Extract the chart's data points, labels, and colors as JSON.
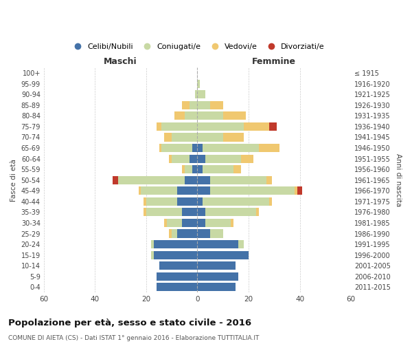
{
  "age_groups": [
    "0-4",
    "5-9",
    "10-14",
    "15-19",
    "20-24",
    "25-29",
    "30-34",
    "35-39",
    "40-44",
    "45-49",
    "50-54",
    "55-59",
    "60-64",
    "65-69",
    "70-74",
    "75-79",
    "80-84",
    "85-89",
    "90-94",
    "95-99",
    "100+"
  ],
  "birth_years": [
    "2011-2015",
    "2006-2010",
    "2001-2005",
    "1996-2000",
    "1991-1995",
    "1986-1990",
    "1981-1985",
    "1976-1980",
    "1971-1975",
    "1966-1970",
    "1961-1965",
    "1956-1960",
    "1951-1955",
    "1946-1950",
    "1941-1945",
    "1936-1940",
    "1931-1935",
    "1926-1930",
    "1921-1925",
    "1916-1920",
    "≤ 1915"
  ],
  "maschi": {
    "celibi": [
      16,
      16,
      15,
      17,
      17,
      8,
      6,
      6,
      8,
      8,
      5,
      2,
      3,
      2,
      0,
      0,
      0,
      0,
      0,
      0,
      0
    ],
    "coniugati": [
      0,
      0,
      0,
      1,
      1,
      2,
      6,
      14,
      12,
      14,
      26,
      3,
      7,
      12,
      10,
      14,
      5,
      3,
      1,
      0,
      0
    ],
    "vedovi": [
      0,
      0,
      0,
      0,
      0,
      1,
      1,
      1,
      1,
      1,
      0,
      1,
      1,
      1,
      3,
      2,
      4,
      3,
      0,
      0,
      0
    ],
    "divorziati": [
      0,
      0,
      0,
      0,
      0,
      0,
      0,
      0,
      0,
      0,
      2,
      0,
      0,
      0,
      0,
      0,
      0,
      0,
      0,
      0,
      0
    ]
  },
  "femmine": {
    "nubili": [
      15,
      16,
      15,
      20,
      16,
      5,
      3,
      3,
      2,
      5,
      5,
      2,
      3,
      2,
      0,
      0,
      0,
      0,
      0,
      0,
      0
    ],
    "coniugate": [
      0,
      0,
      0,
      0,
      2,
      5,
      10,
      20,
      26,
      33,
      22,
      12,
      14,
      22,
      10,
      18,
      10,
      5,
      3,
      1,
      0
    ],
    "vedove": [
      0,
      0,
      0,
      0,
      0,
      0,
      1,
      1,
      1,
      1,
      2,
      3,
      5,
      8,
      8,
      10,
      9,
      5,
      0,
      0,
      0
    ],
    "divorziate": [
      0,
      0,
      0,
      0,
      0,
      0,
      0,
      0,
      0,
      2,
      0,
      0,
      0,
      0,
      0,
      3,
      0,
      0,
      0,
      0,
      0
    ]
  },
  "colors": {
    "celibi": "#4472a8",
    "coniugati": "#c8d9a4",
    "vedovi": "#f0c870",
    "divorziati": "#c0392b"
  },
  "xlim": 60,
  "title": "Popolazione per età, sesso e stato civile - 2016",
  "subtitle": "COMUNE DI AIETA (CS) - Dati ISTAT 1° gennaio 2016 - Elaborazione TUTTITALIA.IT",
  "ylabel_left": "Fasce di età",
  "ylabel_right": "Anni di nascita",
  "legend_labels": [
    "Celibi/Nubili",
    "Coniugati/e",
    "Vedovi/e",
    "Divorziati/e"
  ],
  "maschi_label": "Maschi",
  "femmine_label": "Femmine"
}
